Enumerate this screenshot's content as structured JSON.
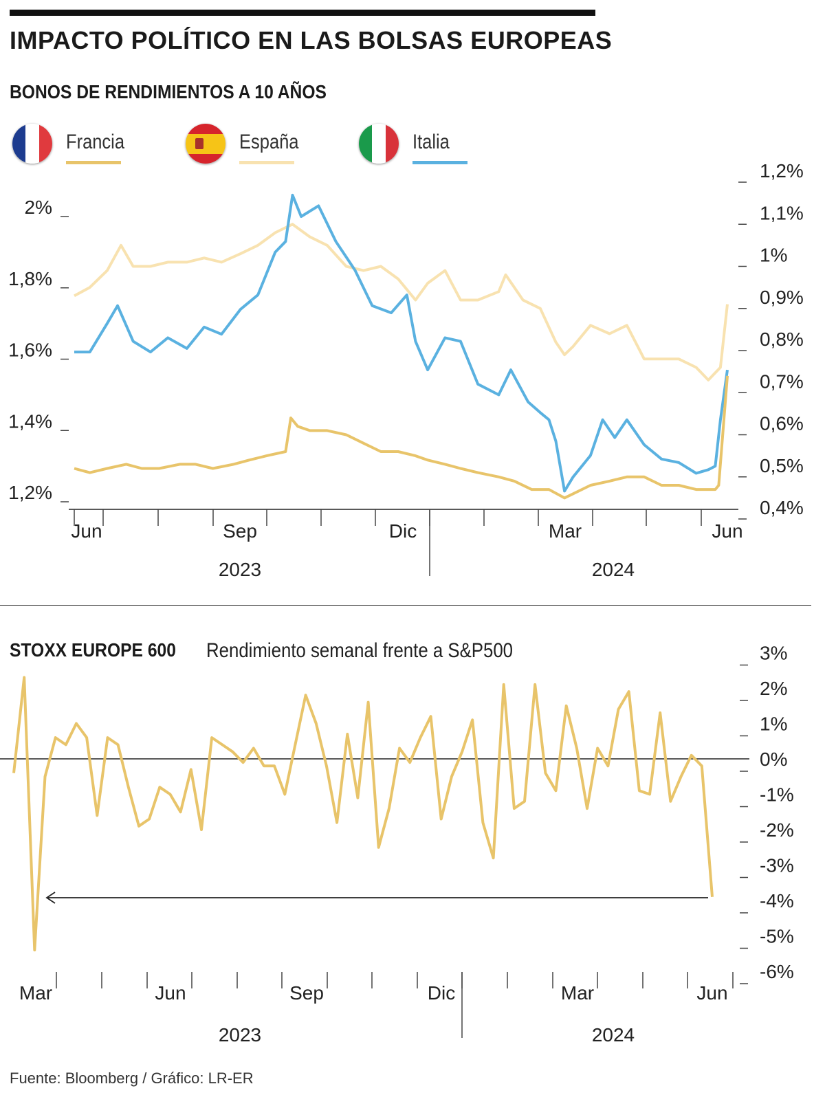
{
  "title": "IMPACTO POLÍTICO EN LAS BOLSAS EUROPEAS",
  "subtitle": "BONOS DE RENDIMIENTOS A 10 AÑOS",
  "legend": [
    {
      "label": "Francia",
      "color": "#e8c46a",
      "flag": "france-flag-icon"
    },
    {
      "label": "España",
      "color": "#f8e2b0",
      "flag": "spain-flag-icon"
    },
    {
      "label": "Italia",
      "color": "#5ab1e0",
      "flag": "italy-flag-icon"
    }
  ],
  "source": "Fuente: Bloomberg / Gráfico: LR-ER",
  "chart_data": [
    {
      "type": "line",
      "title": "BONOS DE RENDIMIENTOS A 10 AÑOS",
      "x_labels": [
        "Jun",
        "Sep",
        "Dic",
        "Mar",
        "Jun"
      ],
      "year_labels": [
        "2023",
        "2024"
      ],
      "y_left_ticks": [
        "2%",
        "1,8%",
        "1,6%",
        "1,4%",
        "1,2%"
      ],
      "y_left_range": [
        1.2,
        2.0
      ],
      "y_right_ticks": [
        "1,2%",
        "1,1%",
        "1%",
        "0,9%",
        "0,8%",
        "0,7%",
        "0,6%",
        "0,5%",
        "0,4%"
      ],
      "y_right_range": [
        0.4,
        1.2
      ],
      "x_range": [
        "2023-06-01",
        "2024-06-12"
      ],
      "series": [
        {
          "name": "Francia",
          "axis": "right",
          "color": "#e8c46a",
          "points": [
            [
              "2023-06-01",
              0.52
            ],
            [
              "2023-06-10",
              0.51
            ],
            [
              "2023-06-20",
              0.52
            ],
            [
              "2023-07-01",
              0.53
            ],
            [
              "2023-07-10",
              0.52
            ],
            [
              "2023-07-20",
              0.52
            ],
            [
              "2023-08-01",
              0.53
            ],
            [
              "2023-08-10",
              0.53
            ],
            [
              "2023-08-20",
              0.52
            ],
            [
              "2023-09-01",
              0.53
            ],
            [
              "2023-09-10",
              0.54
            ],
            [
              "2023-09-20",
              0.55
            ],
            [
              "2023-10-01",
              0.56
            ],
            [
              "2023-10-04",
              0.64
            ],
            [
              "2023-10-08",
              0.62
            ],
            [
              "2023-10-15",
              0.61
            ],
            [
              "2023-10-25",
              0.61
            ],
            [
              "2023-11-05",
              0.6
            ],
            [
              "2023-11-15",
              0.58
            ],
            [
              "2023-11-25",
              0.56
            ],
            [
              "2023-12-05",
              0.56
            ],
            [
              "2023-12-15",
              0.55
            ],
            [
              "2023-12-22",
              0.54
            ],
            [
              "2024-01-01",
              0.53
            ],
            [
              "2024-01-10",
              0.52
            ],
            [
              "2024-01-20",
              0.51
            ],
            [
              "2024-02-01",
              0.5
            ],
            [
              "2024-02-10",
              0.49
            ],
            [
              "2024-02-20",
              0.47
            ],
            [
              "2024-03-01",
              0.47
            ],
            [
              "2024-03-10",
              0.45
            ],
            [
              "2024-03-15",
              0.46
            ],
            [
              "2024-03-25",
              0.48
            ],
            [
              "2024-04-05",
              0.49
            ],
            [
              "2024-04-15",
              0.5
            ],
            [
              "2024-04-25",
              0.5
            ],
            [
              "2024-05-05",
              0.48
            ],
            [
              "2024-05-15",
              0.48
            ],
            [
              "2024-05-25",
              0.47
            ],
            [
              "2024-06-05",
              0.47
            ],
            [
              "2024-06-07",
              0.48
            ],
            [
              "2024-06-12",
              0.74
            ]
          ]
        },
        {
          "name": "España",
          "axis": "right",
          "color": "#f8e2b0",
          "points": [
            [
              "2023-06-01",
              0.93
            ],
            [
              "2023-06-10",
              0.95
            ],
            [
              "2023-06-20",
              0.99
            ],
            [
              "2023-06-28",
              1.05
            ],
            [
              "2023-07-05",
              1.0
            ],
            [
              "2023-07-15",
              1.0
            ],
            [
              "2023-07-25",
              1.01
            ],
            [
              "2023-08-05",
              1.01
            ],
            [
              "2023-08-15",
              1.02
            ],
            [
              "2023-08-25",
              1.01
            ],
            [
              "2023-09-05",
              1.03
            ],
            [
              "2023-09-15",
              1.05
            ],
            [
              "2023-09-25",
              1.08
            ],
            [
              "2023-10-05",
              1.1
            ],
            [
              "2023-10-15",
              1.07
            ],
            [
              "2023-10-25",
              1.05
            ],
            [
              "2023-11-05",
              1.0
            ],
            [
              "2023-11-15",
              0.99
            ],
            [
              "2023-11-25",
              1.0
            ],
            [
              "2023-12-05",
              0.97
            ],
            [
              "2023-12-15",
              0.92
            ],
            [
              "2023-12-22",
              0.96
            ],
            [
              "2024-01-01",
              0.99
            ],
            [
              "2024-01-10",
              0.92
            ],
            [
              "2024-01-20",
              0.92
            ],
            [
              "2024-02-01",
              0.94
            ],
            [
              "2024-02-05",
              0.98
            ],
            [
              "2024-02-15",
              0.92
            ],
            [
              "2024-02-25",
              0.9
            ],
            [
              "2024-03-05",
              0.82
            ],
            [
              "2024-03-10",
              0.79
            ],
            [
              "2024-03-15",
              0.81
            ],
            [
              "2024-03-25",
              0.86
            ],
            [
              "2024-04-05",
              0.84
            ],
            [
              "2024-04-15",
              0.86
            ],
            [
              "2024-04-25",
              0.78
            ],
            [
              "2024-05-05",
              0.78
            ],
            [
              "2024-05-15",
              0.78
            ],
            [
              "2024-05-25",
              0.76
            ],
            [
              "2024-06-01",
              0.73
            ],
            [
              "2024-06-08",
              0.76
            ],
            [
              "2024-06-12",
              0.91
            ]
          ]
        },
        {
          "name": "Italia",
          "axis": "left",
          "color": "#5ab1e0",
          "points": [
            [
              "2023-06-01",
              1.62
            ],
            [
              "2023-06-10",
              1.62
            ],
            [
              "2023-06-20",
              1.7
            ],
            [
              "2023-06-26",
              1.75
            ],
            [
              "2023-07-05",
              1.65
            ],
            [
              "2023-07-15",
              1.62
            ],
            [
              "2023-07-25",
              1.66
            ],
            [
              "2023-08-05",
              1.63
            ],
            [
              "2023-08-15",
              1.69
            ],
            [
              "2023-08-25",
              1.67
            ],
            [
              "2023-09-05",
              1.74
            ],
            [
              "2023-09-15",
              1.78
            ],
            [
              "2023-09-25",
              1.9
            ],
            [
              "2023-10-01",
              1.93
            ],
            [
              "2023-10-05",
              2.06
            ],
            [
              "2023-10-10",
              2.0
            ],
            [
              "2023-10-20",
              2.03
            ],
            [
              "2023-10-30",
              1.93
            ],
            [
              "2023-11-10",
              1.85
            ],
            [
              "2023-11-20",
              1.75
            ],
            [
              "2023-12-01",
              1.73
            ],
            [
              "2023-12-10",
              1.78
            ],
            [
              "2023-12-15",
              1.65
            ],
            [
              "2023-12-22",
              1.57
            ],
            [
              "2024-01-01",
              1.66
            ],
            [
              "2024-01-10",
              1.65
            ],
            [
              "2024-01-20",
              1.53
            ],
            [
              "2024-02-01",
              1.5
            ],
            [
              "2024-02-08",
              1.57
            ],
            [
              "2024-02-18",
              1.48
            ],
            [
              "2024-02-25",
              1.45
            ],
            [
              "2024-03-01",
              1.43
            ],
            [
              "2024-03-05",
              1.37
            ],
            [
              "2024-03-10",
              1.23
            ],
            [
              "2024-03-15",
              1.27
            ],
            [
              "2024-03-25",
              1.33
            ],
            [
              "2024-04-01",
              1.43
            ],
            [
              "2024-04-08",
              1.38
            ],
            [
              "2024-04-15",
              1.43
            ],
            [
              "2024-04-25",
              1.36
            ],
            [
              "2024-05-05",
              1.32
            ],
            [
              "2024-05-15",
              1.31
            ],
            [
              "2024-05-25",
              1.28
            ],
            [
              "2024-06-01",
              1.29
            ],
            [
              "2024-06-05",
              1.3
            ],
            [
              "2024-06-08",
              1.43
            ],
            [
              "2024-06-12",
              1.57
            ]
          ]
        }
      ]
    },
    {
      "type": "line",
      "title": "STOXX EUROPE 600",
      "subtitle": "Rendimiento semanal frente a S&P500",
      "x_labels": [
        "Mar",
        "Jun",
        "Sep",
        "Dic",
        "Mar",
        "Jun"
      ],
      "year_labels": [
        "2023",
        "2024"
      ],
      "y_ticks": [
        "3%",
        "2%",
        "1%",
        "0%",
        "-1%",
        "-2%",
        "-3%",
        "-4%",
        "-5%",
        "-6%"
      ],
      "y_range": [
        -6,
        3
      ],
      "series": [
        {
          "name": "STOXX Europe 600",
          "color": "#e8c46a",
          "values": [
            -0.4,
            2.3,
            -5.4,
            -0.5,
            0.6,
            0.4,
            1.0,
            0.6,
            -1.6,
            0.6,
            0.4,
            -0.8,
            -1.9,
            -1.7,
            -0.8,
            -1.0,
            -1.5,
            -0.3,
            -2.0,
            0.6,
            0.4,
            0.2,
            -0.1,
            0.3,
            -0.2,
            -0.2,
            -1.0,
            0.4,
            1.8,
            1.0,
            -0.2,
            -1.8,
            0.7,
            -1.1,
            1.6,
            -2.5,
            -1.4,
            0.3,
            -0.1,
            0.6,
            1.2,
            -1.7,
            -0.5,
            0.2,
            1.1,
            -1.8,
            -2.8,
            2.1,
            -1.4,
            -1.2,
            2.1,
            -0.4,
            -0.9,
            1.5,
            0.3,
            -1.4,
            0.3,
            -0.2,
            1.4,
            1.9,
            -0.9,
            -1.0,
            1.3,
            -1.2,
            -0.5,
            0.1,
            -0.2,
            -3.9
          ]
        }
      ]
    }
  ]
}
